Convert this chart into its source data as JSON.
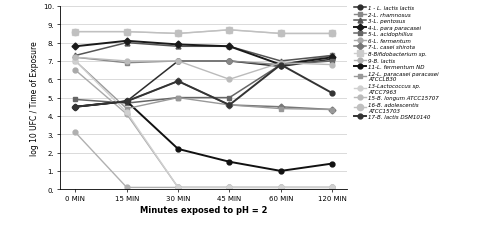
{
  "x_labels": [
    "0 MIN",
    "15 MIN",
    "30 MIN",
    "45 MIN",
    "60 MIN",
    "120 MIN"
  ],
  "x_positions": [
    0,
    1,
    2,
    3,
    4,
    5
  ],
  "ylim": [
    0,
    10
  ],
  "ytick_vals": [
    0.0,
    1.0,
    2.0,
    3.0,
    4.0,
    5.0,
    6.0,
    7.0,
    8.0,
    9.0,
    10.0
  ],
  "ytick_labels": [
    "0.",
    "1.",
    "2.",
    "3.",
    "4.",
    "5.",
    "6.",
    "7.",
    "8.",
    "9.",
    "10."
  ],
  "ylabel": "log 10 UFC / Time of Exposure",
  "xlabel": "Minutes exposed to pH = 2",
  "series": [
    {
      "label": "1 - L. lactis lactis",
      "values": [
        4.5,
        4.8,
        7.0,
        7.0,
        6.7,
        7.1
      ],
      "color": "#2d2d2d",
      "marker": "o",
      "linewidth": 1.1,
      "markersize": 3.5,
      "linestyle": "-"
    },
    {
      "label": "2-L. rhamnosus",
      "values": [
        7.2,
        6.9,
        7.0,
        7.0,
        6.8,
        7.3
      ],
      "color": "#888888",
      "marker": "s",
      "linewidth": 1.0,
      "markersize": 3.5,
      "linestyle": "-"
    },
    {
      "label": "3-L. pentosus",
      "values": [
        7.3,
        8.0,
        7.8,
        7.8,
        7.0,
        7.3
      ],
      "color": "#555555",
      "marker": "^",
      "linewidth": 1.1,
      "markersize": 3.5,
      "linestyle": "-"
    },
    {
      "label": "4-L. para paracasei",
      "values": [
        7.8,
        8.1,
        7.9,
        7.8,
        6.8,
        7.2
      ],
      "color": "#1a1a1a",
      "marker": "D",
      "linewidth": 1.4,
      "markersize": 3.5,
      "linestyle": "-"
    },
    {
      "label": "5-L. acidophillus",
      "values": [
        4.9,
        4.7,
        5.0,
        5.0,
        6.8,
        7.0
      ],
      "color": "#666666",
      "marker": "s",
      "linewidth": 1.1,
      "markersize": 3.5,
      "linestyle": "-"
    },
    {
      "label": "6-L. fermentum",
      "values": [
        6.5,
        4.1,
        0.1,
        0.1,
        0.1,
        0.1
      ],
      "color": "#aaaaaa",
      "marker": "o",
      "linewidth": 1.0,
      "markersize": 3.5,
      "linestyle": "-"
    },
    {
      "label": "7-L. casei shirota",
      "values": [
        4.5,
        4.8,
        5.9,
        4.6,
        4.5,
        4.35
      ],
      "color": "#777777",
      "marker": "D",
      "linewidth": 1.1,
      "markersize": 3.5,
      "linestyle": "-"
    },
    {
      "label": "8-Bifidobacterium sp.",
      "values": [
        8.6,
        8.6,
        8.5,
        8.7,
        8.5,
        8.5
      ],
      "color": "#cccccc",
      "marker": "s",
      "linewidth": 1.0,
      "markersize": 4.5,
      "linestyle": "-"
    },
    {
      "label": "9-B. lactis",
      "values": [
        3.1,
        0.1,
        0.1,
        0.1,
        0.1,
        0.1
      ],
      "color": "#b0b0b0",
      "marker": "o",
      "linewidth": 1.0,
      "markersize": 3.5,
      "linestyle": "-"
    },
    {
      "label": "11-L. fermentum ND",
      "values": [
        4.5,
        4.8,
        2.2,
        1.5,
        1.0,
        1.4
      ],
      "color": "#111111",
      "marker": "o",
      "linewidth": 1.4,
      "markersize": 3.5,
      "linestyle": "-"
    },
    {
      "label": "12-L. paracasei paracasei\nATCCLB30",
      "values": [
        7.0,
        4.4,
        5.0,
        4.6,
        4.4,
        4.35
      ],
      "color": "#999999",
      "marker": "s",
      "linewidth": 1.0,
      "markersize": 3.5,
      "linestyle": "-"
    },
    {
      "label": "13-Lactococcus sp.\nATCC7963",
      "values": [
        7.0,
        4.2,
        0.1,
        0.1,
        0.1,
        0.1
      ],
      "color": "#d0d0d0",
      "marker": "o",
      "linewidth": 1.0,
      "markersize": 3.5,
      "linestyle": "-"
    },
    {
      "label": "15-B. longum ATCC15707",
      "values": [
        7.2,
        7.0,
        7.0,
        6.0,
        6.9,
        6.8
      ],
      "color": "#bbbbbb",
      "marker": "o",
      "linewidth": 1.0,
      "markersize": 3.5,
      "linestyle": "-"
    },
    {
      "label": "16-B. adolescentis\nATCC15703",
      "values": [
        8.6,
        8.6,
        8.5,
        8.7,
        8.5,
        8.5
      ],
      "color": "#c0c0c0",
      "marker": "o",
      "linewidth": 1.0,
      "markersize": 4.5,
      "linestyle": "-"
    },
    {
      "label": "17-B. lactis DSM10140",
      "values": [
        4.5,
        4.8,
        5.9,
        4.6,
        6.8,
        5.25
      ],
      "color": "#333333",
      "marker": "o",
      "linewidth": 1.4,
      "markersize": 3.5,
      "linestyle": "-"
    }
  ]
}
